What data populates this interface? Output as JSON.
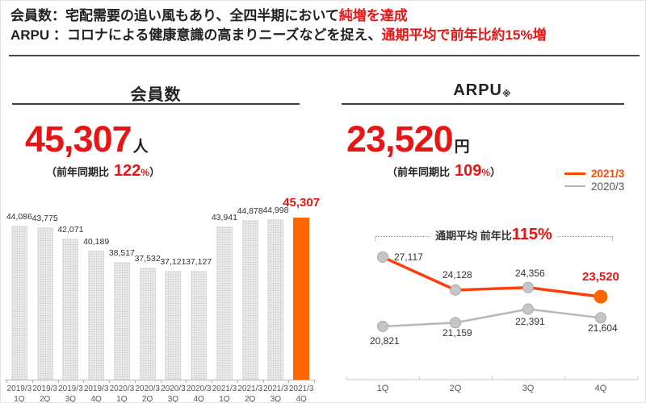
{
  "header": {
    "line1_black": "会員数：宅配需要の追い風もあり、全四半期において",
    "line1_red": "純増を達成",
    "line2_black": "ARPU ：コロナによる健康意識の高まりニーズなどを捉え、",
    "line2_red": "通期平均で前年比約15%増"
  },
  "members": {
    "title": "会員数",
    "value": "45,307",
    "unit": "人",
    "yoy_label": "（前年同期比",
    "yoy_value": "122",
    "yoy_pct": "%",
    "yoy_close": "）"
  },
  "arpu": {
    "title": "ARPU",
    "note": "※",
    "value": "23,520",
    "unit": "円",
    "yoy_label": "（前年同期比",
    "yoy_value": "109",
    "yoy_pct": "%",
    "yoy_close": "）",
    "annotation_black": "通期平均 前年比",
    "annotation_red": "115%",
    "legend": [
      {
        "label": "2021/3",
        "color": "#ff4b00"
      },
      {
        "label": "2020/3",
        "color": "#b3b3b3"
      }
    ]
  },
  "colors": {
    "accent_red": "#e81515",
    "highlight_orange": "#ff6600",
    "line_orange": "#ff3d0d",
    "line_gray": "#b8b8b8",
    "bar_gray": "#ececec"
  },
  "chart_data": [
    {
      "type": "bar",
      "title": "会員数（人）",
      "categories": [
        "2019/3\n1Q",
        "2019/3\n2Q",
        "2019/3\n3Q",
        "2019/3\n4Q",
        "2020/3\n1Q",
        "2020/3\n2Q",
        "2020/3\n3Q",
        "2020/3\n4Q",
        "2021/3\n1Q",
        "2021/3\n2Q",
        "2021/3\n3Q",
        "2021/3\n4Q"
      ],
      "values": [
        44086,
        43775,
        42071,
        40189,
        38517,
        37532,
        37121,
        37127,
        43941,
        44878,
        44998,
        45307
      ],
      "labels": [
        "44,086",
        "43,775",
        "42,071",
        "40,189",
        "38,517",
        "37,532",
        "37,121",
        "37,127",
        "43,941",
        "44,878",
        "44,998",
        "45,307"
      ],
      "highlight_index": 11,
      "xlabel": "",
      "ylabel": "",
      "ylim": [
        20300,
        45307
      ],
      "grid": false,
      "legend_position": "none",
      "bar_color": "#ececec",
      "highlight_color": "#ff6600"
    },
    {
      "type": "line",
      "title": "ARPU（円）",
      "categories": [
        "1Q",
        "2Q",
        "3Q",
        "4Q"
      ],
      "series": [
        {
          "name": "2021/3",
          "values": [
            27117,
            24128,
            24356,
            23520
          ],
          "labels": [
            "27,117",
            "24,128",
            "24,356",
            "23,520"
          ],
          "color": "#ff3d0d"
        },
        {
          "name": "2020/3",
          "values": [
            20821,
            21159,
            22391,
            21604
          ],
          "labels": [
            "20,821",
            "21,159",
            "22,391",
            "21,604"
          ],
          "color": "#b8b8b8"
        }
      ],
      "annotation": "通期平均 前年比115%",
      "xlabel": "",
      "ylabel": "",
      "ylim": [
        20000,
        28000
      ],
      "grid": false,
      "legend_position": "top-right"
    }
  ]
}
